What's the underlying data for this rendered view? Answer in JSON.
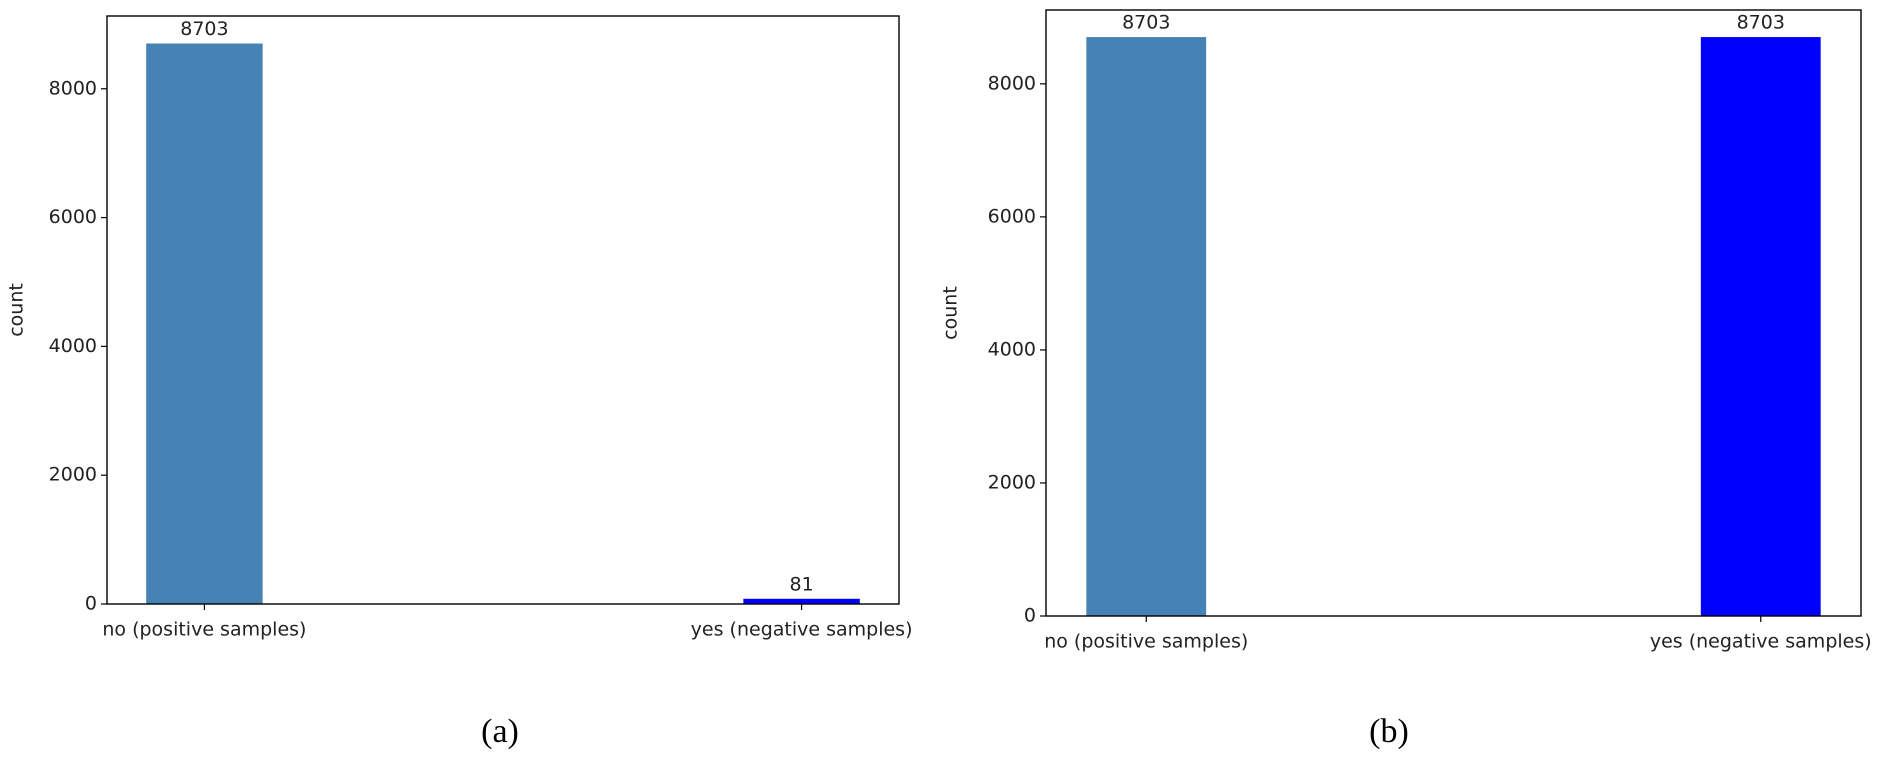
{
  "chart_data": [
    {
      "type": "bar",
      "y_label": "count",
      "caption": "(a)",
      "categories": [
        "no (positive samples)",
        "yes (negative samples)"
      ],
      "values": [
        8703,
        81
      ],
      "colors": [
        "#4682b4",
        "#0000ff"
      ],
      "ylim": [
        0,
        9130
      ],
      "yticks": [
        0,
        2000,
        4000,
        6000,
        8000
      ]
    },
    {
      "type": "bar",
      "y_label": "count",
      "caption": "(b)",
      "categories": [
        "no (positive samples)",
        "yes (negative samples)"
      ],
      "values": [
        8703,
        8703
      ],
      "colors": [
        "#4682b4",
        "#0000ff"
      ],
      "ylim": [
        0,
        9110
      ],
      "yticks": [
        0,
        2000,
        4000,
        6000,
        8000
      ]
    }
  ]
}
